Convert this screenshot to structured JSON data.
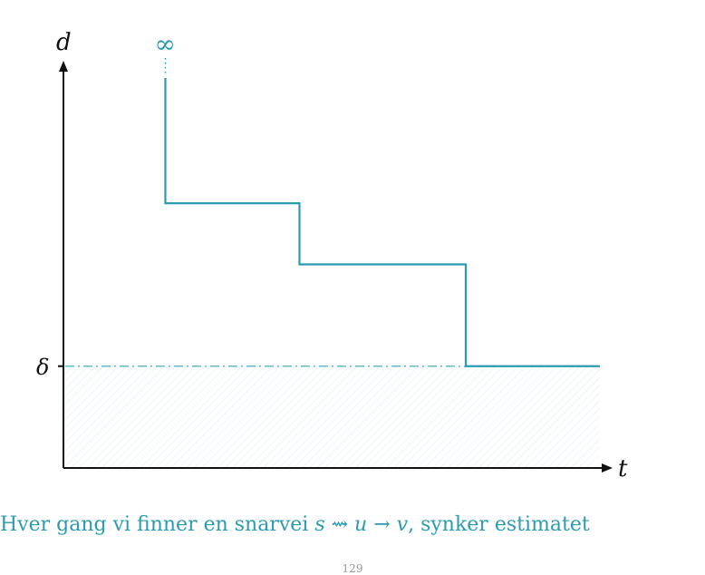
{
  "chart_data": {
    "type": "line",
    "step": "post",
    "xlabel": "t",
    "ylabel": "d",
    "y_tick_labels": [
      "δ"
    ],
    "top_label": "∞",
    "series": [
      {
        "x": [
          0.19,
          0.44,
          0.75,
          1.0
        ],
        "y": [
          0.65,
          0.5,
          0.25,
          0.25
        ],
        "color": "#2a9bb1"
      }
    ],
    "threshold": {
      "y": 0.25,
      "label": "δ",
      "style": "dash-dot",
      "shaded_below": true
    },
    "xlim": [
      0,
      1
    ],
    "ylim": [
      0,
      1
    ]
  },
  "caption": {
    "text_before": "Hver gang vi finner en snarvei ",
    "math": "s ⇝ u → v",
    "text_after": ", synker estimatet"
  },
  "page_number": "129",
  "colors": {
    "accent": "#2a9bb1",
    "axis": "#111111"
  }
}
